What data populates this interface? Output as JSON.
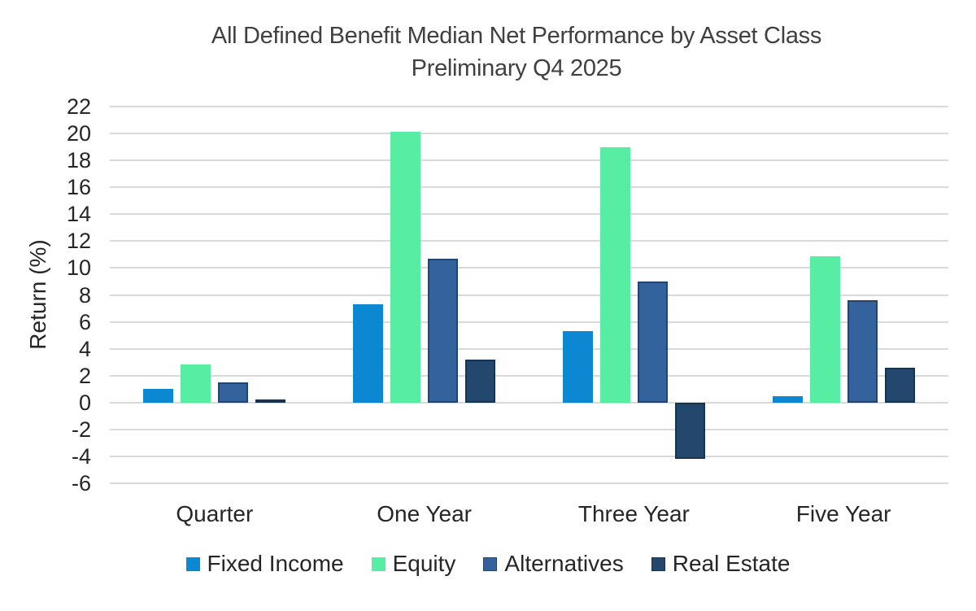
{
  "chart_data": {
    "type": "bar",
    "title": "All Defined Benefit Median Net Performance by Asset Class",
    "subtitle": "Preliminary Q4 2025",
    "xlabel": "",
    "ylabel": "Return (%)",
    "categories": [
      "Quarter",
      "One Year",
      "Three Year",
      "Five Year"
    ],
    "series": [
      {
        "name": "Fixed Income",
        "color": "#0C87D1",
        "border": "",
        "values": [
          1.0,
          7.3,
          5.3,
          0.5
        ]
      },
      {
        "name": "Equity",
        "color": "#57EDA2",
        "border": "",
        "values": [
          2.8,
          20.1,
          19.0,
          10.9
        ]
      },
      {
        "name": "Alternatives",
        "color": "#33629C",
        "border": "#26436B",
        "values": [
          1.5,
          10.7,
          9.0,
          7.6
        ]
      },
      {
        "name": "Real Estate",
        "color": "#24486D",
        "border": "#16344F",
        "values": [
          0.2,
          3.2,
          -4.2,
          2.6
        ]
      }
    ],
    "ylim": [
      -6,
      22
    ],
    "ytick_step": 2,
    "yticks": [
      22,
      20,
      18,
      16,
      14,
      12,
      10,
      8,
      6,
      4,
      2,
      0,
      -2,
      -4,
      -6
    ],
    "grid": true,
    "gridline_color": "#D9D9D9",
    "legend_position": "bottom",
    "background_color": "#FFFFFF",
    "title_color": "#404040",
    "axis_text_color": "#262626"
  }
}
